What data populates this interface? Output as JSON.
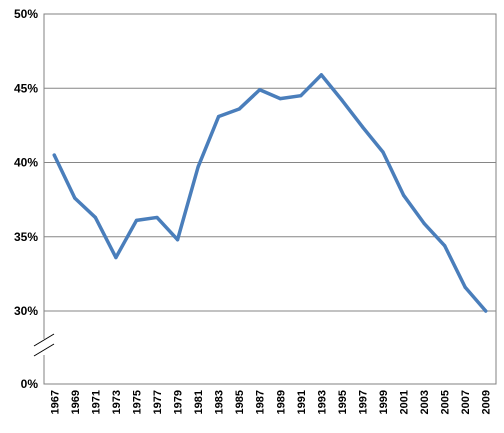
{
  "chart_data": {
    "type": "line",
    "title": "",
    "xlabel": "",
    "ylabel": "",
    "ylim": [
      0,
      50
    ],
    "y_ticks": [
      "0%",
      "30%",
      "35%",
      "40%",
      "45%",
      "50%"
    ],
    "y_axis_break": true,
    "grid": true,
    "line_color": "#4a7ebb",
    "categories": [
      "1967",
      "1969",
      "1971",
      "1973",
      "1975",
      "1977",
      "1979",
      "1981",
      "1983",
      "1985",
      "1987",
      "1989",
      "1991",
      "1993",
      "1995",
      "1997",
      "1999",
      "2001",
      "2003",
      "2005",
      "2007",
      "2009"
    ],
    "series": [
      {
        "values": [
          40.5,
          37.6,
          36.3,
          33.6,
          36.1,
          36.3,
          34.8,
          39.7,
          43.1,
          43.6,
          44.9,
          44.3,
          44.5,
          45.9,
          44.2,
          42.4,
          40.7,
          37.8,
          35.9,
          34.4,
          31.6,
          30.0
        ]
      }
    ]
  }
}
